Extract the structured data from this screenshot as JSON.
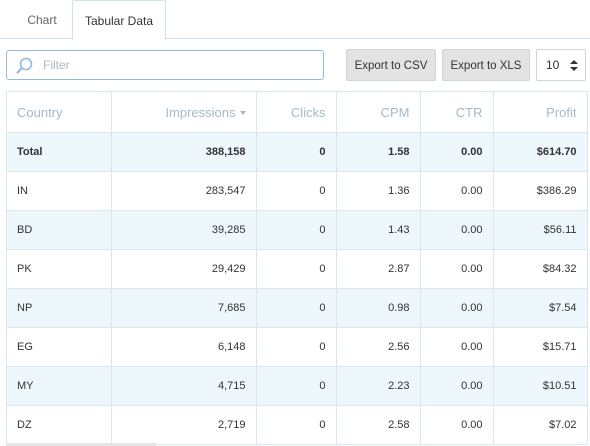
{
  "tabs": [
    {
      "label": "Chart",
      "active": false
    },
    {
      "label": "Tabular Data",
      "active": true
    }
  ],
  "toolbar": {
    "filter_placeholder": "Filter",
    "filter_value": "",
    "export_csv_label": "Export to CSV",
    "export_xls_label": "Export to XLS",
    "page_size": "10"
  },
  "table": {
    "headers": [
      "Country",
      "Impressions",
      "Clicks",
      "CPM",
      "CTR",
      "Profit"
    ],
    "sorted_column": "Impressions",
    "total": {
      "country": "Total",
      "impressions": "388,158",
      "clicks": "0",
      "cpm": "1.58",
      "ctr": "0.00",
      "profit": "$614.70"
    },
    "rows": [
      {
        "country": "IN",
        "impressions": "283,547",
        "clicks": "0",
        "cpm": "1.36",
        "ctr": "0.00",
        "profit": "$386.29"
      },
      {
        "country": "BD",
        "impressions": "39,285",
        "clicks": "0",
        "cpm": "1.43",
        "ctr": "0.00",
        "profit": "$56.11"
      },
      {
        "country": "PK",
        "impressions": "29,429",
        "clicks": "0",
        "cpm": "2.87",
        "ctr": "0.00",
        "profit": "$84.32"
      },
      {
        "country": "NP",
        "impressions": "7,685",
        "clicks": "0",
        "cpm": "0.98",
        "ctr": "0.00",
        "profit": "$7.54"
      },
      {
        "country": "EG",
        "impressions": "6,148",
        "clicks": "0",
        "cpm": "2.56",
        "ctr": "0.00",
        "profit": "$15.71"
      },
      {
        "country": "MY",
        "impressions": "4,715",
        "clicks": "0",
        "cpm": "2.23",
        "ctr": "0.00",
        "profit": "$10.51"
      },
      {
        "country": "DZ",
        "impressions": "2,719",
        "clicks": "0",
        "cpm": "2.58",
        "ctr": "0.00",
        "profit": "$7.02"
      }
    ]
  },
  "colors": {
    "accent_border": "#8fbadd",
    "header_text": "#a7b9c6",
    "stripe": "#eef7fb",
    "grid": "#d9e7ef",
    "button_bg": "#e3e3e3"
  }
}
